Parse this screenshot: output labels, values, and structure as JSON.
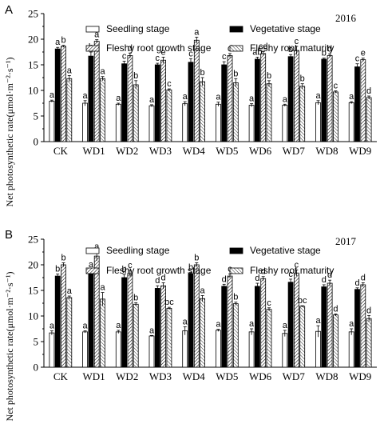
{
  "chart_data": [
    {
      "type": "bar",
      "panel": "A",
      "year": "2016",
      "ylabel": "Net photosynthetic rate(μmol·m⁻²·s⁻¹)",
      "ylim": [
        0,
        25
      ],
      "yticks": [
        "0",
        "5",
        "10",
        "15",
        "20",
        "25"
      ],
      "categories": [
        "CK",
        "WD1",
        "WD2",
        "WD3",
        "WD4",
        "WD5",
        "WD6",
        "WD7",
        "WD8",
        "WD9"
      ],
      "series": [
        {
          "name": "Seedling stage",
          "values": [
            7.9,
            7.5,
            7.3,
            7.0,
            7.4,
            7.3,
            7.1,
            7.1,
            7.6,
            7.6
          ],
          "errors": [
            0.2,
            0.5,
            0.2,
            0.2,
            0.4,
            0.4,
            0.3,
            0.2,
            0.4,
            0.2
          ],
          "labels": [
            "a",
            "a",
            "a",
            "a",
            "a",
            "a",
            "a",
            "a",
            "a",
            "a"
          ]
        },
        {
          "name": "Vegetative stage",
          "values": [
            18.1,
            16.7,
            15.2,
            15.0,
            15.5,
            15.0,
            16.1,
            16.6,
            16.1,
            14.6
          ],
          "errors": [
            0.3,
            0.8,
            0.5,
            0.3,
            0.7,
            0.6,
            0.4,
            0.4,
            0.2,
            0.6
          ],
          "labels": [
            "a",
            "b",
            "c",
            "c",
            "c",
            "c",
            "ab",
            "b",
            "b",
            "c"
          ]
        },
        {
          "name": "Fleshy root growth stage",
          "values": [
            18.6,
            19.6,
            16.8,
            15.9,
            19.8,
            16.8,
            17.2,
            17.8,
            16.8,
            16.0
          ],
          "errors": [
            0.2,
            0.3,
            0.5,
            0.6,
            0.6,
            0.4,
            0.4,
            0.8,
            0.3,
            0.3
          ],
          "labels": [
            "b",
            "a",
            "d",
            "e",
            "a",
            "d",
            "cd",
            "c",
            "d",
            "e"
          ]
        },
        {
          "name": "Fleshy root maturity",
          "values": [
            12.3,
            12.3,
            11.1,
            10.1,
            11.7,
            11.5,
            11.3,
            10.8,
            9.7,
            8.6
          ],
          "errors": [
            0.6,
            0.4,
            0.8,
            0.2,
            0.8,
            0.8,
            0.6,
            0.5,
            0.2,
            0.3
          ],
          "labels": [
            "a",
            "a",
            "b",
            "c",
            "b",
            "b",
            "b",
            "b",
            "c",
            "d"
          ]
        }
      ]
    },
    {
      "type": "bar",
      "panel": "B",
      "year": "2017",
      "ylabel": "Net photosynthetic rate(μmol·m⁻²·s⁻¹)",
      "ylim": [
        0,
        25
      ],
      "yticks": [
        "0",
        "5",
        "10",
        "15",
        "20",
        "25"
      ],
      "categories": [
        "CK",
        "WD1",
        "WD2",
        "WD3",
        "WD4",
        "WD5",
        "WD6",
        "WD7",
        "WD8",
        "WD9"
      ],
      "series": [
        {
          "name": "Seedling stage",
          "values": [
            6.7,
            6.9,
            6.9,
            6.1,
            7.1,
            7.2,
            6.9,
            6.6,
            7.0,
            6.9
          ],
          "errors": [
            0.4,
            0.2,
            0.3,
            0.1,
            0.8,
            0.2,
            0.6,
            0.6,
            1.1,
            0.6
          ],
          "labels": [
            "a",
            "a",
            "a",
            "a",
            "a",
            "a",
            "a",
            "a",
            "a",
            "a"
          ]
        },
        {
          "name": "Vegetative stage",
          "values": [
            17.8,
            18.9,
            17.5,
            15.4,
            18.3,
            15.8,
            15.8,
            16.6,
            15.7,
            15.2
          ],
          "errors": [
            0.4,
            0.2,
            0.6,
            0.5,
            0.2,
            0.4,
            0.6,
            0.6,
            0.4,
            0.3
          ],
          "labels": [
            "b",
            "a",
            "b",
            "d",
            "b",
            "d",
            "d",
            "c",
            "d",
            "d"
          ]
        },
        {
          "name": "Fleshy root growth stage",
          "values": [
            20.0,
            21.7,
            18.3,
            15.9,
            20.0,
            17.8,
            17.3,
            18.4,
            16.4,
            16.1
          ],
          "errors": [
            0.4,
            0.9,
            0.6,
            0.6,
            0.4,
            0.4,
            0.4,
            0.6,
            0.6,
            0.4
          ],
          "labels": [
            "b",
            "a",
            "c",
            "d",
            "b",
            "c",
            "d",
            "c",
            "d",
            "d"
          ]
        },
        {
          "name": "Fleshy root maturity",
          "values": [
            13.6,
            13.3,
            12.3,
            11.5,
            13.4,
            12.4,
            11.3,
            11.9,
            10.2,
            9.5
          ],
          "errors": [
            0.3,
            1.3,
            0.3,
            0.2,
            0.6,
            0.3,
            0.3,
            0.1,
            0.2,
            0.6
          ],
          "labels": [
            "a",
            "a",
            "b",
            "bc",
            "a",
            "b",
            "c",
            "bc",
            "d",
            "d"
          ]
        }
      ]
    }
  ]
}
